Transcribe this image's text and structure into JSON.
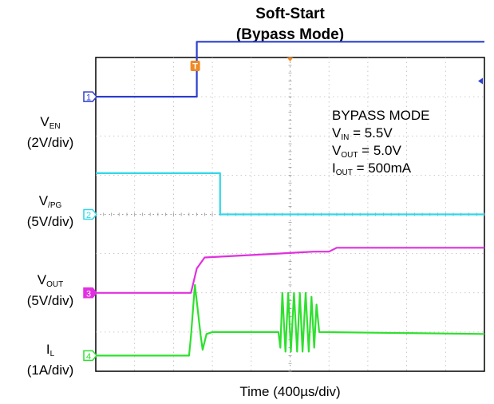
{
  "chart_data": {
    "type": "line",
    "title": "Soft-Start",
    "subtitle": "(Bypass Mode)",
    "xlabel": "Time (400µs/div)",
    "grid": true,
    "x_divisions": 10,
    "y_divisions": 8,
    "trigger_marker": "T",
    "channels": [
      {
        "number": "1",
        "name": "V",
        "subscript": "EN",
        "scale": "(2V/div)",
        "color": "#2d3fd0",
        "ground_div": 3.0,
        "points": [
          [
            0,
            0.0
          ],
          [
            2.6,
            0.0
          ],
          [
            2.6,
            1.4
          ],
          [
            10,
            1.4
          ]
        ]
      },
      {
        "number": "2",
        "name": "V",
        "subscript": "/PG",
        "scale": "(5V/div)",
        "color": "#2fd8e8",
        "ground_div": 0.0,
        "points": [
          [
            0,
            1.05
          ],
          [
            3.2,
            1.05
          ],
          [
            3.2,
            0.0
          ],
          [
            10,
            0.0
          ]
        ]
      },
      {
        "number": "3",
        "name": "V",
        "subscript": "OUT",
        "scale": "(5V/div)",
        "color": "#e030e0",
        "ground_div": -2.0,
        "points": [
          [
            0,
            0.0
          ],
          [
            2.45,
            0.0
          ],
          [
            2.6,
            0.62
          ],
          [
            2.8,
            0.9
          ],
          [
            4.7,
            1.0
          ],
          [
            5.6,
            1.05
          ],
          [
            6.0,
            1.05
          ],
          [
            6.2,
            1.15
          ],
          [
            10,
            1.15
          ]
        ]
      },
      {
        "number": "4",
        "name": "I",
        "subscript": "L",
        "scale": "(1A/div)",
        "color": "#2ee02e",
        "ground_div": -3.6,
        "points": [
          [
            0,
            0.0
          ],
          [
            2.4,
            0.0
          ],
          [
            2.45,
            0.5
          ],
          [
            2.55,
            1.8
          ],
          [
            2.62,
            1.2
          ],
          [
            2.7,
            0.5
          ],
          [
            2.75,
            0.15
          ],
          [
            2.85,
            0.55
          ],
          [
            3.0,
            0.6
          ],
          [
            4.7,
            0.6
          ],
          [
            4.75,
            0.2
          ],
          [
            4.8,
            1.6
          ],
          [
            4.88,
            0.1
          ],
          [
            4.95,
            1.6
          ],
          [
            5.02,
            0.1
          ],
          [
            5.1,
            1.6
          ],
          [
            5.18,
            0.1
          ],
          [
            5.25,
            1.6
          ],
          [
            5.32,
            0.1
          ],
          [
            5.4,
            1.6
          ],
          [
            5.48,
            0.1
          ],
          [
            5.55,
            1.5
          ],
          [
            5.62,
            0.2
          ],
          [
            5.68,
            1.3
          ],
          [
            5.75,
            0.6
          ],
          [
            10,
            0.55
          ]
        ]
      }
    ],
    "annotations": {
      "mode": "BYPASS MODE",
      "vin": {
        "name": "V",
        "subscript": "IN",
        "value": " = 5.5V"
      },
      "vout": {
        "name": "V",
        "subscript": "OUT",
        "value": " = 5.0V"
      },
      "iout": {
        "name": "I",
        "subscript": "OUT",
        "value": " = 500mA"
      }
    }
  }
}
